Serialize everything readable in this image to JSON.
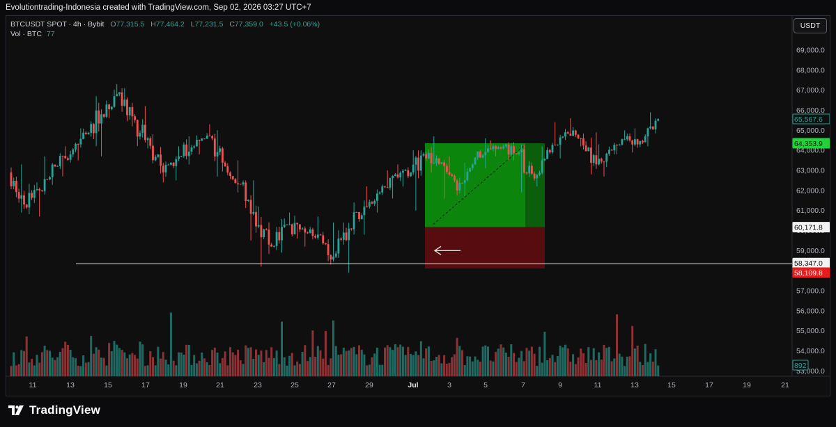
{
  "header": {
    "caption": "Evolutiontrading-Indonesia created with TradingView.com, Sep 02, 2026 03:27 UTC+7"
  },
  "legend": {
    "symbol": "BTCUSDT SPOT · 4h · Bybit",
    "open_key": "O",
    "open": "77,315.5",
    "high_key": "H",
    "high": "77,464.2",
    "low_key": "L",
    "low": "77,231.5",
    "close_key": "C",
    "close": "77,359.0",
    "change": "+43.5 (+0.06%)",
    "volume_label": "Vol · BTC",
    "volume_value": "77"
  },
  "currency_button": "USDT",
  "colors": {
    "bull": "#26a69a",
    "bear": "#ef5350",
    "profit_zone": "#0b8f0b",
    "loss_zone": "#5c0e10",
    "background": "#0f0f10"
  },
  "price_axis": {
    "ticks": [
      "69,000.0",
      "68,000.0",
      "67,000.0",
      "66,000.0",
      "65,000.0",
      "64,000.0",
      "63,000.0",
      "62,000.0",
      "61,000.0",
      "60,000.0",
      "59,000.0",
      "57,000.0",
      "56,000.0",
      "55,000.0",
      "54,000.0",
      "53,000.0"
    ],
    "badges": [
      {
        "label": "65,567.6",
        "kind": "last-price"
      },
      {
        "label": "64,353.9",
        "kind": "target"
      },
      {
        "label": "60,171.8",
        "kind": "entry"
      },
      {
        "label": "58,347.0",
        "kind": "horizontal-line"
      },
      {
        "label": "58,109.8",
        "kind": "stop"
      },
      {
        "label": "892",
        "kind": "volume"
      }
    ]
  },
  "time_axis": {
    "labels": [
      "11",
      "13",
      "15",
      "17",
      "19",
      "21",
      "23",
      "25",
      "27",
      "29",
      "Jul",
      "3",
      "5",
      "7",
      "9",
      "11",
      "13",
      "15",
      "17",
      "19",
      "21"
    ]
  },
  "chart_data": {
    "type": "candlestick",
    "timeframe": "4h",
    "horizontal_line": 58347.0,
    "position": {
      "entry": 60171.8,
      "target": 64353.9,
      "stop": 58109.8
    },
    "ohlc_daily": [
      {
        "date": "10",
        "o": 62900,
        "h": 63300,
        "l": 60900,
        "c": 61300
      },
      {
        "date": "11",
        "o": 61300,
        "h": 62400,
        "l": 60700,
        "c": 62000
      },
      {
        "date": "12",
        "o": 62000,
        "h": 63700,
        "l": 61800,
        "c": 63200
      },
      {
        "date": "13",
        "o": 63200,
        "h": 64200,
        "l": 62700,
        "c": 63800
      },
      {
        "date": "14",
        "o": 63800,
        "h": 65100,
        "l": 63500,
        "c": 64800
      },
      {
        "date": "15",
        "o": 64800,
        "h": 66700,
        "l": 63700,
        "c": 65800
      },
      {
        "date": "16",
        "o": 65800,
        "h": 67300,
        "l": 65600,
        "c": 66800
      },
      {
        "date": "17",
        "o": 66800,
        "h": 67100,
        "l": 65200,
        "c": 65700
      },
      {
        "date": "18",
        "o": 65700,
        "h": 66200,
        "l": 64100,
        "c": 64600
      },
      {
        "date": "19",
        "o": 64600,
        "h": 64800,
        "l": 62400,
        "c": 62900
      },
      {
        "date": "20",
        "o": 62900,
        "h": 64200,
        "l": 62500,
        "c": 63700
      },
      {
        "date": "21",
        "o": 63700,
        "h": 64700,
        "l": 63300,
        "c": 64200
      },
      {
        "date": "22",
        "o": 64200,
        "h": 65300,
        "l": 63800,
        "c": 64700
      },
      {
        "date": "23",
        "o": 64700,
        "h": 65000,
        "l": 62700,
        "c": 63200
      },
      {
        "date": "24",
        "o": 63200,
        "h": 63500,
        "l": 61900,
        "c": 62300
      },
      {
        "date": "25",
        "o": 62300,
        "h": 62500,
        "l": 59500,
        "c": 60200
      },
      {
        "date": "26",
        "o": 60200,
        "h": 61200,
        "l": 58200,
        "c": 59200
      },
      {
        "date": "27",
        "o": 59200,
        "h": 60600,
        "l": 58900,
        "c": 60300
      },
      {
        "date": "28",
        "o": 60300,
        "h": 60900,
        "l": 59600,
        "c": 60100
      },
      {
        "date": "29",
        "o": 60100,
        "h": 60700,
        "l": 59200,
        "c": 59800
      },
      {
        "date": "30",
        "o": 59800,
        "h": 60400,
        "l": 58300,
        "c": 58700
      },
      {
        "date": "Jul 1",
        "o": 58700,
        "h": 60400,
        "l": 57900,
        "c": 60100
      },
      {
        "date": "2",
        "o": 60100,
        "h": 61500,
        "l": 59800,
        "c": 61200
      },
      {
        "date": "3",
        "o": 61200,
        "h": 62200,
        "l": 60900,
        "c": 61900
      },
      {
        "date": "4",
        "o": 61900,
        "h": 63000,
        "l": 61600,
        "c": 62800
      },
      {
        "date": "5",
        "o": 62800,
        "h": 63300,
        "l": 62200,
        "c": 62900
      },
      {
        "date": "6",
        "o": 62900,
        "h": 64000,
        "l": 61000,
        "c": 63600
      },
      {
        "date": "7",
        "o": 63600,
        "h": 64700,
        "l": 62900,
        "c": 63400
      },
      {
        "date": "8",
        "o": 63400,
        "h": 63700,
        "l": 61600,
        "c": 62000
      },
      {
        "date": "9",
        "o": 62000,
        "h": 63400,
        "l": 61700,
        "c": 63300
      },
      {
        "date": "10",
        "o": 63300,
        "h": 64600,
        "l": 63100,
        "c": 64100
      },
      {
        "date": "11",
        "o": 64100,
        "h": 64500,
        "l": 63700,
        "c": 64200
      },
      {
        "date": "12",
        "o": 64200,
        "h": 64400,
        "l": 63500,
        "c": 63900
      },
      {
        "date": "13",
        "o": 63900,
        "h": 64300,
        "l": 61900,
        "c": 62600
      },
      {
        "date": "14",
        "o": 62600,
        "h": 64200,
        "l": 62200,
        "c": 63900
      },
      {
        "date": "15",
        "o": 63900,
        "h": 65400,
        "l": 63600,
        "c": 64900
      },
      {
        "date": "16",
        "o": 64900,
        "h": 65600,
        "l": 64200,
        "c": 64600
      },
      {
        "date": "17",
        "o": 64600,
        "h": 64900,
        "l": 62800,
        "c": 63300
      },
      {
        "date": "18",
        "o": 63300,
        "h": 64300,
        "l": 62700,
        "c": 64000
      },
      {
        "date": "19",
        "o": 64000,
        "h": 65000,
        "l": 63800,
        "c": 64700
      },
      {
        "date": "20",
        "o": 64700,
        "h": 65100,
        "l": 63900,
        "c": 64400
      },
      {
        "date": "21",
        "o": 64400,
        "h": 65900,
        "l": 64200,
        "c": 65568
      }
    ]
  }
}
